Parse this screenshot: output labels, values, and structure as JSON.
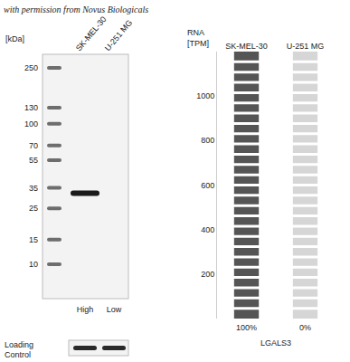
{
  "watermark": "with permission from Novus Biologicals",
  "western_blot": {
    "unit": "[kDa]",
    "lanes": [
      "SK-MEL-30",
      "U-251 MG"
    ],
    "markers": [
      250,
      130,
      100,
      70,
      55,
      35,
      25,
      15,
      10
    ],
    "bands": [
      {
        "lane": "SK-MEL-30",
        "kda": 32
      }
    ],
    "lane_levels": [
      "High",
      "Low"
    ],
    "loading_control": [
      "Loading",
      "Control"
    ]
  },
  "chart_data": {
    "type": "bar",
    "ylabel": "RNA [TPM]",
    "xlabel": "LGALS3",
    "categories": [
      "SK-MEL-30",
      "U-251 MG"
    ],
    "values": [
      1200,
      0
    ],
    "color": "#555555",
    "annotations": [
      {
        "category": "SK-MEL-30",
        "text": "100%"
      },
      {
        "category": "U-251 MG",
        "text": "0%"
      }
    ],
    "ylim": [
      0,
      1200
    ],
    "yticks": [
      200,
      400,
      600,
      800,
      1000
    ],
    "grid": false
  }
}
